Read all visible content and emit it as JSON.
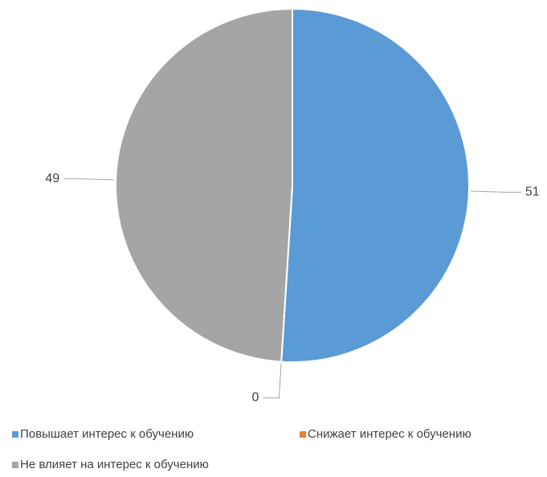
{
  "chart_data": {
    "type": "pie",
    "categories": [
      "Повышает интерес к обучению",
      "Снижает интерес к обучению",
      "Не влияет на интерес к обучению"
    ],
    "values": [
      51,
      0,
      49
    ],
    "colors": [
      "#5b9bd5",
      "#ed7d31",
      "#a5a5a5"
    ],
    "legend": "bottom"
  }
}
